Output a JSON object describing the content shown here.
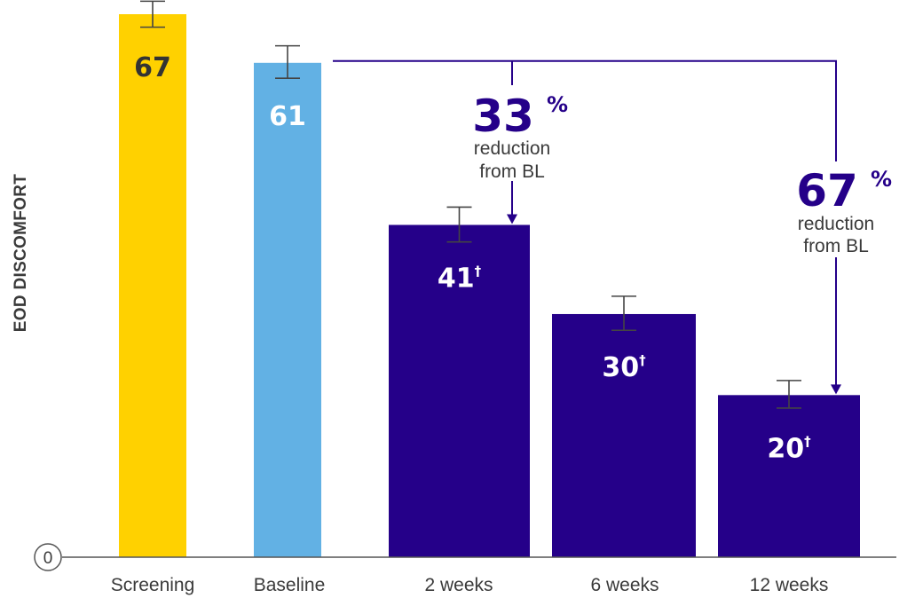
{
  "chart_data": {
    "type": "bar",
    "ylabel": "EOD DISCOMFORT",
    "xlabel": "",
    "ylim": [
      0,
      67
    ],
    "y_tick_labels": [
      "0"
    ],
    "categories": [
      "Screening",
      "Baseline",
      "2 weeks",
      "6 weeks",
      "12 weeks"
    ],
    "values": [
      67,
      61,
      41,
      30,
      20
    ],
    "value_labels": [
      "67",
      "61",
      "41",
      "30",
      "20"
    ],
    "value_markers": [
      "",
      "",
      "†",
      "†",
      "†"
    ],
    "error_bars": [
      {
        "low": 65.4,
        "high": 68.6
      },
      {
        "low": 59.1,
        "high": 63.1
      },
      {
        "low": 38.9,
        "high": 43.2
      },
      {
        "low": 28.0,
        "high": 32.2
      },
      {
        "low": 18.4,
        "high": 21.8
      }
    ],
    "colors": [
      "#ffd100",
      "#62b1e4",
      "#250089",
      "#250089",
      "#250089"
    ],
    "label_colors": [
      "#333333",
      "#ffffff",
      "#ffffff",
      "#ffffff",
      "#ffffff"
    ],
    "grid": false,
    "annotations": [
      {
        "value": "33",
        "unit": "%",
        "line1": "reduction",
        "line2": "from BL",
        "from_category": "Baseline",
        "to_category": "2 weeks"
      },
      {
        "value": "67",
        "unit": "%",
        "line1": "reduction",
        "line2": "from BL",
        "from_category": "Baseline",
        "to_category": "12 weeks"
      }
    ],
    "annotation_color": "#250089"
  }
}
